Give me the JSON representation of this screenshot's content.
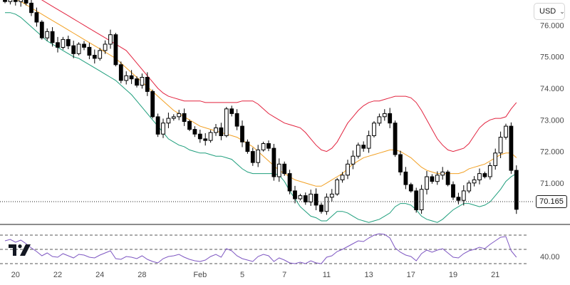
{
  "currency": {
    "selected": "USD",
    "chevron_icon": "chevron-down-icon"
  },
  "last_price": "70.165",
  "logo": {
    "name": "tradingview-logo"
  },
  "colors": {
    "candle": "#000000",
    "upper_band": "#e2233f",
    "middle_band": "#f2a023",
    "lower_band": "#1e9e7c",
    "oscillator": "#7e57c2",
    "axis_text": "#4a4a4a"
  },
  "chart_data": [
    {
      "type": "candlestick",
      "title": "",
      "y_ticks": [
        "76.000",
        "75.000",
        "74.000",
        "73.000",
        "72.000",
        "71.000"
      ],
      "ylim": [
        69.8,
        76.8
      ],
      "x_ticks": [
        "20",
        "22",
        "24",
        "28",
        "Feb",
        "5",
        "7",
        "11",
        "13",
        "17",
        "19",
        "21"
      ],
      "x_tick_positions": [
        2,
        10,
        18,
        26,
        37,
        45,
        53,
        61,
        69,
        77,
        85,
        93
      ],
      "n_bars": 98,
      "close": [
        76.75,
        76.9,
        76.75,
        76.85,
        76.7,
        76.4,
        76.1,
        75.6,
        75.8,
        75.45,
        75.3,
        75.55,
        75.35,
        75.1,
        75.4,
        75.3,
        75.05,
        74.95,
        75.2,
        75.4,
        75.7,
        74.75,
        74.25,
        74.4,
        74.3,
        74.1,
        74.35,
        73.9,
        73.1,
        72.55,
        72.9,
        73.05,
        73.1,
        73.2,
        72.95,
        72.7,
        72.55,
        72.4,
        72.35,
        72.6,
        72.75,
        72.5,
        73.35,
        73.2,
        72.8,
        72.3,
        72.0,
        71.65,
        72.05,
        72.25,
        72.1,
        71.2,
        71.6,
        71.3,
        70.75,
        70.5,
        70.6,
        70.4,
        70.65,
        70.3,
        70.1,
        70.55,
        70.65,
        71.1,
        71.25,
        71.6,
        71.85,
        72.2,
        72.1,
        72.5,
        72.9,
        73.1,
        73.2,
        72.9,
        71.9,
        71.35,
        70.95,
        70.75,
        70.15,
        70.8,
        71.2,
        71.05,
        71.25,
        71.35,
        70.95,
        70.55,
        70.45,
        70.75,
        71.0,
        71.1,
        71.3,
        71.2,
        71.55,
        71.95,
        72.45,
        72.8,
        71.4,
        70.165
      ],
      "bb_upper": [
        77.6,
        77.5,
        77.4,
        77.3,
        77.2,
        77.1,
        76.95,
        76.8,
        76.7,
        76.6,
        76.5,
        76.4,
        76.3,
        76.2,
        76.1,
        76.0,
        75.9,
        75.8,
        75.7,
        75.6,
        75.5,
        75.4,
        75.3,
        75.2,
        75.0,
        74.8,
        74.6,
        74.4,
        74.2,
        74.0,
        73.85,
        73.75,
        73.7,
        73.65,
        73.6,
        73.6,
        73.6,
        73.6,
        73.55,
        73.55,
        73.55,
        73.55,
        73.55,
        73.55,
        73.55,
        73.6,
        73.6,
        73.6,
        73.5,
        73.35,
        73.2,
        73.1,
        73.0,
        72.9,
        72.85,
        72.8,
        72.75,
        72.6,
        72.4,
        72.2,
        72.05,
        72.0,
        72.1,
        72.3,
        72.6,
        72.9,
        73.1,
        73.3,
        73.45,
        73.55,
        73.6,
        73.6,
        73.65,
        73.7,
        73.75,
        73.75,
        73.75,
        73.7,
        73.55,
        73.3,
        73.0,
        72.7,
        72.4,
        72.2,
        72.05,
        72.0,
        72.05,
        72.1,
        72.25,
        72.5,
        72.75,
        72.9,
        73.0,
        73.05,
        73.05,
        73.1,
        73.35,
        73.55
      ],
      "bb_middle": [
        77.0,
        76.95,
        76.85,
        76.75,
        76.65,
        76.55,
        76.45,
        76.35,
        76.25,
        76.15,
        76.05,
        75.95,
        75.85,
        75.75,
        75.65,
        75.55,
        75.45,
        75.35,
        75.25,
        75.15,
        75.05,
        74.95,
        74.8,
        74.65,
        74.5,
        74.35,
        74.2,
        74.05,
        73.9,
        73.75,
        73.6,
        73.45,
        73.3,
        73.2,
        73.1,
        73.0,
        72.9,
        72.8,
        72.75,
        72.7,
        72.65,
        72.6,
        72.55,
        72.5,
        72.45,
        72.35,
        72.25,
        72.15,
        72.0,
        71.85,
        71.7,
        71.55,
        71.4,
        71.3,
        71.2,
        71.1,
        71.05,
        71.0,
        70.95,
        70.9,
        70.9,
        71.0,
        71.1,
        71.2,
        71.3,
        71.45,
        71.6,
        71.7,
        71.8,
        71.85,
        71.9,
        71.95,
        72.0,
        72.05,
        72.05,
        72.0,
        71.9,
        71.8,
        71.65,
        71.5,
        71.4,
        71.35,
        71.3,
        71.3,
        71.3,
        71.3,
        71.3,
        71.35,
        71.45,
        71.5,
        71.55,
        71.6,
        71.7,
        71.8,
        71.9,
        71.95,
        71.95,
        71.8
      ],
      "bb_lower": [
        76.4,
        76.4,
        76.35,
        76.25,
        76.1,
        75.95,
        75.8,
        75.65,
        75.5,
        75.4,
        75.3,
        75.2,
        75.1,
        75.0,
        74.95,
        74.85,
        74.75,
        74.65,
        74.55,
        74.45,
        74.35,
        74.25,
        74.1,
        73.95,
        73.8,
        73.6,
        73.4,
        73.2,
        73.0,
        72.8,
        72.6,
        72.4,
        72.3,
        72.2,
        72.15,
        72.05,
        72.0,
        71.95,
        71.95,
        71.9,
        71.85,
        71.85,
        71.8,
        71.75,
        71.6,
        71.45,
        71.35,
        71.3,
        71.3,
        71.3,
        71.3,
        71.3,
        71.25,
        71.05,
        70.75,
        70.5,
        70.25,
        70.1,
        69.95,
        69.9,
        69.8,
        69.8,
        69.95,
        70.1,
        70.1,
        70.05,
        69.95,
        69.85,
        69.8,
        69.75,
        69.8,
        69.85,
        69.95,
        70.05,
        70.25,
        70.35,
        70.35,
        70.3,
        70.15,
        69.95,
        69.85,
        69.8,
        69.75,
        69.85,
        70.0,
        70.15,
        70.25,
        70.35,
        70.35,
        70.3,
        70.25,
        70.3,
        70.4,
        70.6,
        70.8,
        71.05,
        71.2,
        71.3
      ]
    },
    {
      "type": "line",
      "title": "",
      "y_ticks": [
        "40.00"
      ],
      "ylim": [
        30,
        80
      ],
      "levels": [
        70,
        50,
        30
      ],
      "values": [
        62,
        64,
        60,
        63,
        58,
        52,
        47,
        41,
        45,
        40,
        39,
        44,
        41,
        38,
        43,
        42,
        39,
        38,
        42,
        45,
        48,
        37,
        36,
        40,
        39,
        37,
        41,
        36,
        33,
        31,
        37,
        40,
        41,
        43,
        39,
        36,
        34,
        33,
        35,
        40,
        43,
        39,
        51,
        48,
        41,
        37,
        35,
        33,
        40,
        43,
        41,
        33,
        38,
        35,
        31,
        30,
        32,
        30,
        34,
        31,
        30,
        39,
        41,
        47,
        50,
        54,
        58,
        62,
        61,
        66,
        70,
        72,
        71,
        66,
        52,
        46,
        42,
        40,
        34,
        44,
        49,
        46,
        49,
        51,
        45,
        39,
        38,
        44,
        48,
        50,
        53,
        51,
        57,
        62,
        67,
        68,
        48,
        39
      ]
    }
  ]
}
